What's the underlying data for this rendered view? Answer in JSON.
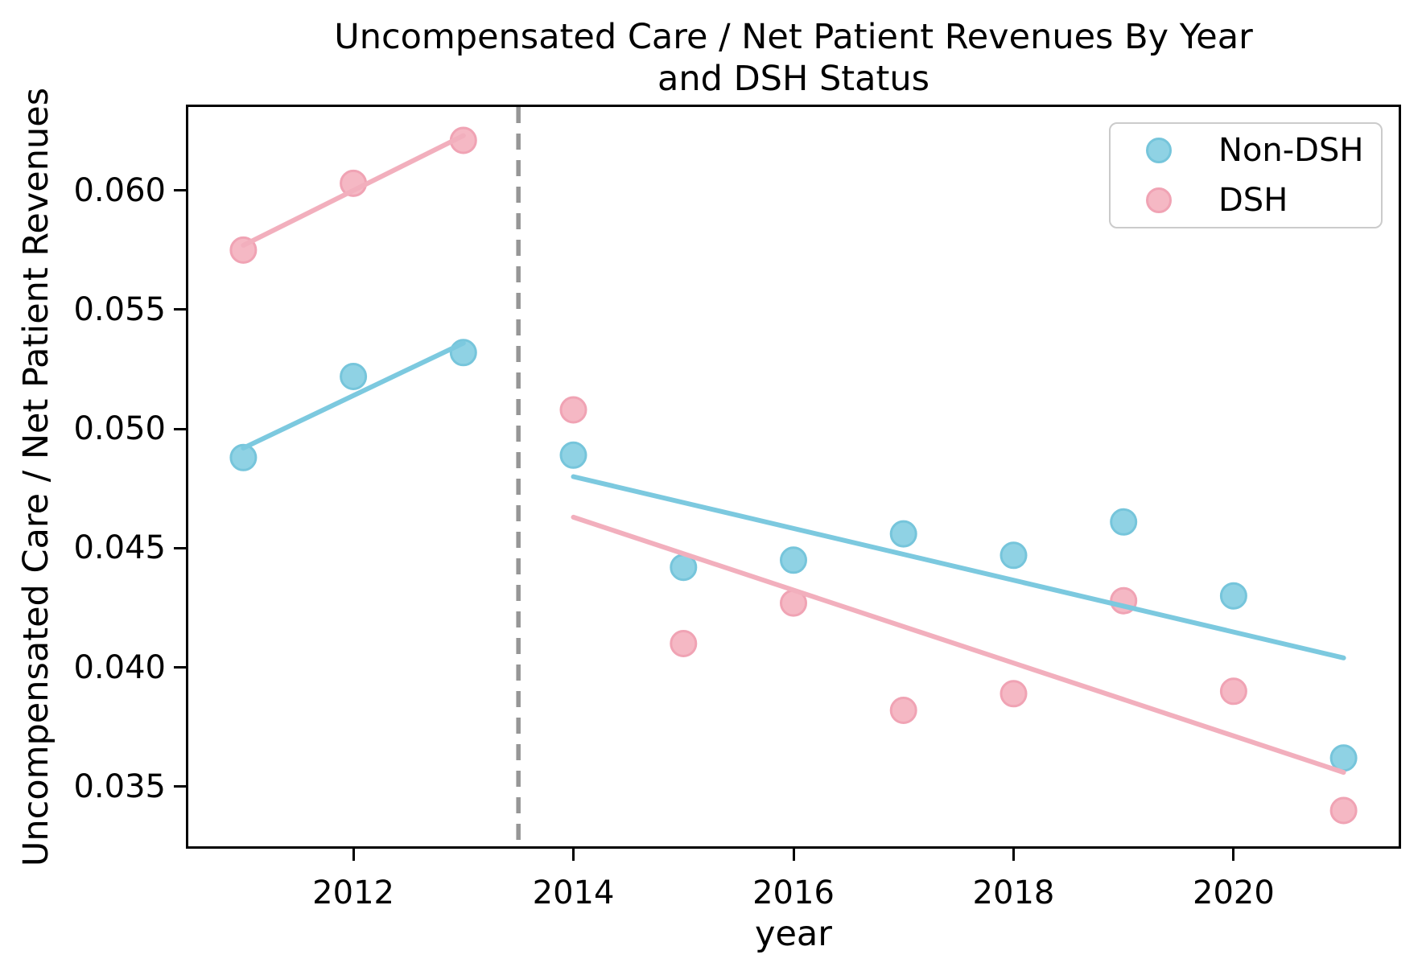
{
  "title": {
    "line1": "Uncompensated Care / Net Patient Revenues By Year",
    "line2": "and DSH Status"
  },
  "axes": {
    "xlabel": "year",
    "ylabel": "Uncompensated Care / Net Patient Revenues"
  },
  "legend": {
    "items": [
      {
        "label": "Non-DSH",
        "color": "#8FD2E4"
      },
      {
        "label": "DSH",
        "color": "#F5B8C4"
      }
    ]
  },
  "chart_data": {
    "type": "scatter",
    "title": "Uncompensated Care / Net Patient Revenues By Year and DSH Status",
    "xlabel": "year",
    "ylabel": "Uncompensated Care / Net Patient Revenues",
    "xlim": [
      2010.5,
      2021.5
    ],
    "ylim": [
      0.0325,
      0.0635
    ],
    "grid": false,
    "legend_position": "upper right",
    "x_ticks": {
      "values": [
        2012,
        2014,
        2016,
        2018,
        2020
      ],
      "labels": [
        "2012",
        "2014",
        "2016",
        "2018",
        "2020"
      ]
    },
    "y_ticks": {
      "values": [
        0.06,
        0.055,
        0.05,
        0.045,
        0.04,
        0.035
      ],
      "labels": [
        "0.060",
        "0.055",
        "0.050",
        "0.045",
        "0.040",
        "0.035"
      ]
    },
    "series": [
      {
        "name": "Non-DSH",
        "color": "#8FD2E4",
        "edge_color": "#76C5DB",
        "line_color": "#7CC9DF",
        "x": [
          2011,
          2012,
          2013,
          2014,
          2015,
          2016,
          2017,
          2018,
          2019,
          2020,
          2021
        ],
        "y": [
          0.0488,
          0.0522,
          0.0532,
          0.0489,
          0.0442,
          0.0445,
          0.0456,
          0.0447,
          0.0461,
          0.043,
          0.0362
        ]
      },
      {
        "name": "DSH",
        "color": "#F5B8C4",
        "edge_color": "#F0A3B4",
        "line_color": "#F2AFBD",
        "x": [
          2011,
          2012,
          2013,
          2014,
          2015,
          2016,
          2017,
          2018,
          2019,
          2020,
          2021
        ],
        "y": [
          0.0575,
          0.0603,
          0.0621,
          0.0508,
          0.041,
          0.0427,
          0.0382,
          0.0389,
          0.0428,
          0.039,
          0.034
        ]
      }
    ],
    "trend_lines": [
      {
        "series": "Non-DSH",
        "x1": 2011,
        "y1": 0.0492,
        "x2": 2013,
        "y2": 0.0536
      },
      {
        "series": "DSH",
        "x1": 2011,
        "y1": 0.0577,
        "x2": 2013,
        "y2": 0.0623
      },
      {
        "series": "Non-DSH",
        "x1": 2014,
        "y1": 0.048,
        "x2": 2021,
        "y2": 0.0404
      },
      {
        "series": "DSH",
        "x1": 2014,
        "y1": 0.0463,
        "x2": 2021,
        "y2": 0.0356
      }
    ],
    "vline": {
      "x": 2013.5,
      "style": "dashed",
      "color": "#969696"
    }
  }
}
